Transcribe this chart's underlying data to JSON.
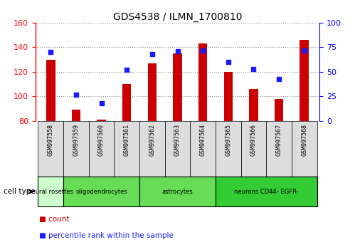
{
  "title": "GDS4538 / ILMN_1700810",
  "samples": [
    "GSM997558",
    "GSM997559",
    "GSM997560",
    "GSM997561",
    "GSM997562",
    "GSM997563",
    "GSM997564",
    "GSM997565",
    "GSM997566",
    "GSM997567",
    "GSM997568"
  ],
  "count_values": [
    130,
    89,
    81,
    110,
    127,
    135,
    143,
    120,
    106,
    98,
    146
  ],
  "percentile_values": [
    70,
    27,
    18,
    52,
    68,
    71,
    72,
    60,
    53,
    43,
    72
  ],
  "ymin": 80,
  "ymax": 160,
  "y2min": 0,
  "y2max": 100,
  "yticks_left": [
    80,
    100,
    120,
    140,
    160
  ],
  "yticks_right": [
    0,
    25,
    50,
    75,
    100
  ],
  "bar_color": "#cc0000",
  "dot_color": "#1a1aff",
  "bar_width": 0.35,
  "cell_type_groups": [
    {
      "label": "neural rosettes",
      "start": 0,
      "end": 0,
      "color": "#ccffcc"
    },
    {
      "label": "oligodendrocytes",
      "start": 1,
      "end": 3,
      "color": "#66dd55"
    },
    {
      "label": "astrocytes",
      "start": 4,
      "end": 6,
      "color": "#66dd55"
    },
    {
      "label": "neurons CD44- EGFR-",
      "start": 7,
      "end": 10,
      "color": "#33cc33"
    }
  ],
  "legend_count_label": "count",
  "legend_pct_label": "percentile rank within the sample",
  "cell_type_label": "cell type",
  "tick_bg_color": "#dddddd",
  "grid_color": "#aaaaaa",
  "spine_color": "#000000"
}
